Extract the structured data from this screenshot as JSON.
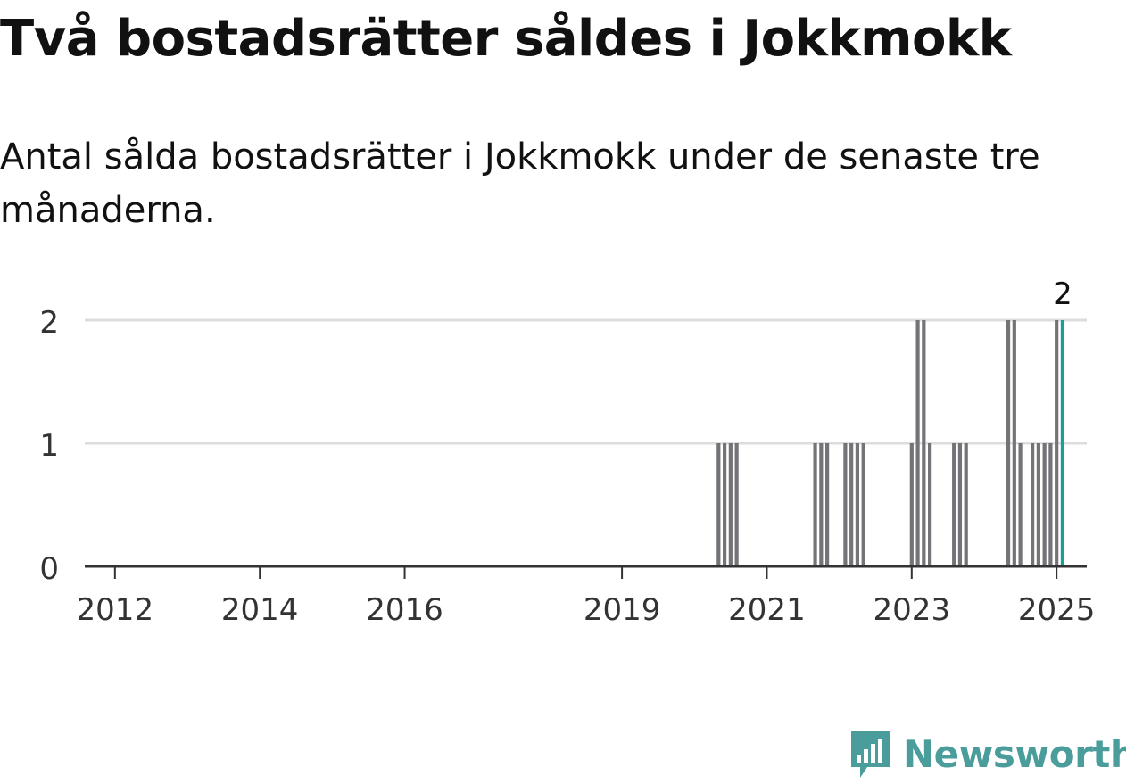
{
  "header": {
    "title": "Två bostadsrätter såldes i Jokkmokk",
    "subtitle": "Antal sålda bostadsrätter i Jokkmokk under de senaste tre månaderna."
  },
  "brand": {
    "name": "Newsworthy",
    "icon": "newsworthy-logo-icon",
    "color": "#4a9d9a"
  },
  "chart_data": {
    "type": "bar",
    "title": "Två bostadsrätter såldes i Jokkmokk",
    "subtitle": "Antal sålda bostadsrätter i Jokkmokk under de senaste tre månaderna.",
    "xlabel": "",
    "ylabel": "",
    "x_axis": {
      "type": "date",
      "range": [
        "2011-08",
        "2025-06"
      ],
      "ticks": [
        "2012",
        "2014",
        "2016",
        "2019",
        "2021",
        "2023",
        "2025"
      ]
    },
    "ylim": [
      0,
      2
    ],
    "yticks": [
      0,
      1,
      2
    ],
    "grid": true,
    "legend": "none",
    "bar_color": "#737378",
    "highlight_color": "#1a9e96",
    "bars": [
      {
        "period": "2020-05",
        "value": 1
      },
      {
        "period": "2020-06",
        "value": 1
      },
      {
        "period": "2020-07",
        "value": 1
      },
      {
        "period": "2020-08",
        "value": 1
      },
      {
        "period": "2021-09",
        "value": 1
      },
      {
        "period": "2021-10",
        "value": 1
      },
      {
        "period": "2021-11",
        "value": 1
      },
      {
        "period": "2022-02",
        "value": 1
      },
      {
        "period": "2022-03",
        "value": 1
      },
      {
        "period": "2022-04",
        "value": 1
      },
      {
        "period": "2022-05",
        "value": 1
      },
      {
        "period": "2023-01",
        "value": 1
      },
      {
        "period": "2023-02",
        "value": 2
      },
      {
        "period": "2023-03",
        "value": 2
      },
      {
        "period": "2023-04",
        "value": 1
      },
      {
        "period": "2023-08",
        "value": 1
      },
      {
        "period": "2023-09",
        "value": 1
      },
      {
        "period": "2023-10",
        "value": 1
      },
      {
        "period": "2024-05",
        "value": 2
      },
      {
        "period": "2024-06",
        "value": 2
      },
      {
        "period": "2024-07",
        "value": 1
      },
      {
        "period": "2024-09",
        "value": 1
      },
      {
        "period": "2024-10",
        "value": 1
      },
      {
        "period": "2024-11",
        "value": 1
      },
      {
        "period": "2024-12",
        "value": 1
      },
      {
        "period": "2025-01",
        "value": 2
      },
      {
        "period": "2025-02",
        "value": 2,
        "highlight": true
      }
    ],
    "annotations": [
      {
        "period": "2025-02",
        "value": 2,
        "text": "2"
      }
    ]
  }
}
